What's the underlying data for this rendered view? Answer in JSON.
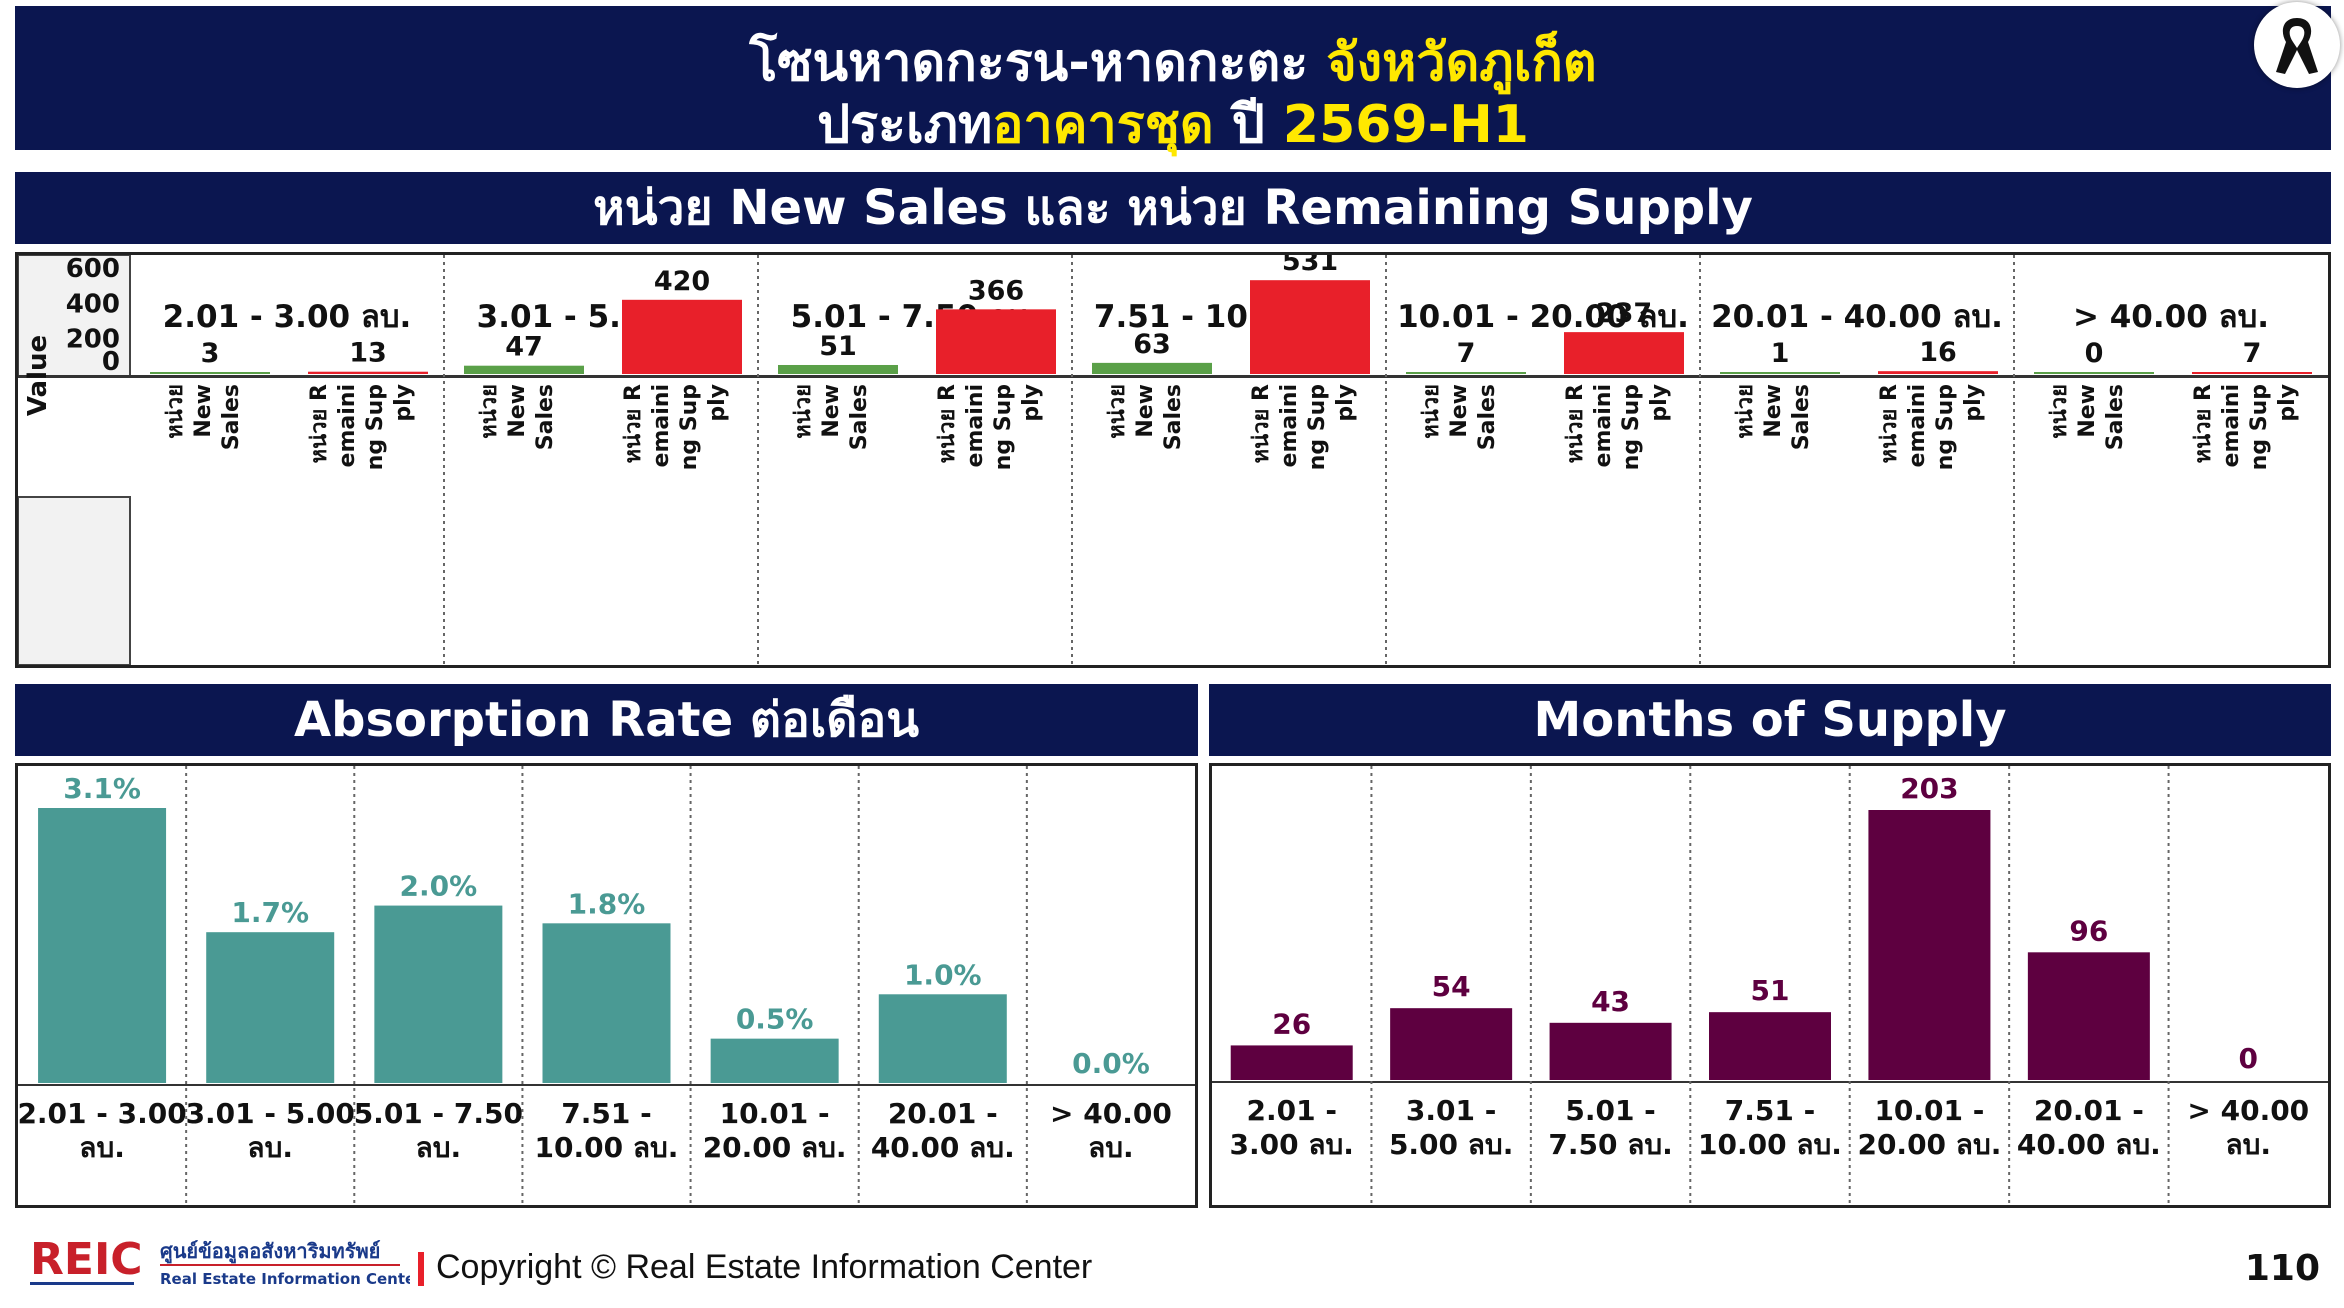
{
  "header": {
    "title_line1_part1": "โซนหาดกะรน-หาดกะตะ ",
    "title_line1_part2": "จังหวัดภูเก็ต",
    "title_line2_part1": "ประเภท",
    "title_line2_part2": "อาคารชุด",
    "title_line2_part3": " ปี ",
    "title_line2_part4": "2569-H1"
  },
  "sections": {
    "top_title": "หน่วย New Sales และ หน่วย Remaining Supply",
    "absorption_title": "Absorption Rate ต่อเดือน",
    "mos_title": "Months of Supply"
  },
  "footer": {
    "logo_text": "REIC",
    "logo_thai": "ศูนย์ข้อมูลอสังหาริมทรัพย์",
    "logo_en": "Real Estate Information Center",
    "copyright": "Copyright © Real Estate Information Center",
    "page_number": "110"
  },
  "chart_data": [
    {
      "type": "bar",
      "categories": [
        "2.01 - 3.00 ลบ.",
        "3.01 - 5.00 ลบ.",
        "5.01 - 7.50 ลบ.",
        "7.51 - 10.00 ลบ.",
        "10.01 - 20.00 ลบ.",
        "20.01 - 40.00 ลบ.",
        "> 40.00 ลบ."
      ],
      "sub_labels": [
        "หน่วย New Sales",
        "หน่วย Remaining Supply"
      ],
      "series": [
        {
          "name": "หน่วย New Sales",
          "values": [
            3,
            47,
            51,
            63,
            7,
            1,
            0
          ],
          "color": "#5aa048"
        },
        {
          "name": "หน่วย Remaining Supply",
          "values": [
            13,
            420,
            366,
            531,
            237,
            16,
            7
          ],
          "color": "#e8202a"
        }
      ],
      "ylabel": "Value",
      "yticks": [
        0,
        200,
        400,
        600
      ],
      "ylim": [
        0,
        600
      ],
      "grid": false
    },
    {
      "type": "bar",
      "categories": [
        "2.01 - 3.00 ลบ.",
        "3.01 - 5.00 ลบ.",
        "5.01 - 7.50 ลบ.",
        "7.51 - 10.00 ลบ.",
        "10.01 - 20.00 ลบ.",
        "20.01 - 40.00 ลบ.",
        "> 40.00 ลบ."
      ],
      "values": [
        3.1,
        1.7,
        2.0,
        1.8,
        0.5,
        1.0,
        0.0
      ],
      "value_labels": [
        "3.1%",
        "1.7%",
        "2.0%",
        "1.8%",
        "0.5%",
        "1.0%",
        "0.0%"
      ],
      "color": "#4a9a94",
      "ylim": [
        0,
        3.1
      ]
    },
    {
      "type": "bar",
      "categories": [
        "2.01 - 3.00 ลบ.",
        "3.01 - 5.00 ลบ.",
        "5.01 - 7.50 ลบ.",
        "7.51 - 10.00 ลบ.",
        "10.01 - 20.00 ลบ.",
        "20.01 - 40.00 ลบ.",
        "> 40.00 ลบ."
      ],
      "values": [
        26,
        54,
        43,
        51,
        203,
        96,
        0
      ],
      "color": "#5e0040",
      "ylim": [
        0,
        203
      ]
    }
  ]
}
